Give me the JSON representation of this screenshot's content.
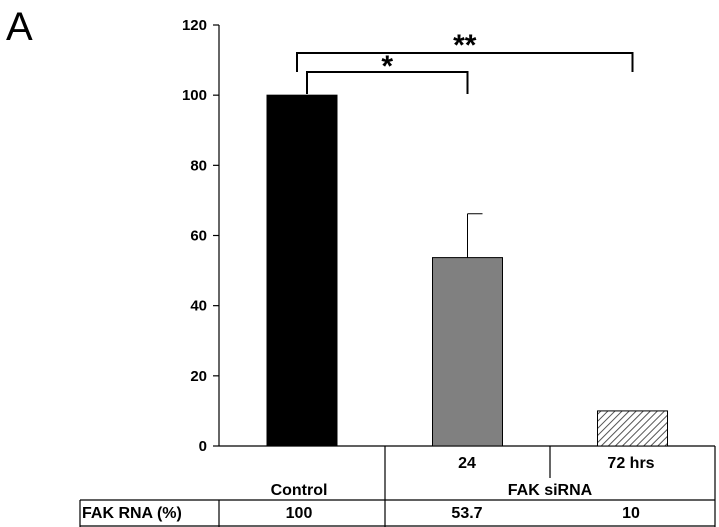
{
  "panel_label": "A",
  "chart_data": {
    "type": "bar",
    "categories": [
      "Control",
      "24",
      "72 hrs"
    ],
    "values": [
      100,
      53.7,
      10
    ],
    "errors": [
      0,
      12.5,
      0
    ],
    "bar_fill": [
      "#000000",
      "#808080",
      "hatched"
    ],
    "ylim": [
      0,
      120
    ],
    "yticks": [
      0,
      20,
      40,
      60,
      80,
      100,
      120
    ],
    "group_label": "FAK siRNA",
    "significance": [
      {
        "from": 0,
        "to": 1,
        "label": "*"
      },
      {
        "from": 0,
        "to": 2,
        "label": "**"
      }
    ],
    "table": {
      "row_label": "FAK RNA (%)",
      "values": [
        "100",
        "53.7",
        "10"
      ]
    },
    "title": "",
    "xlabel": "",
    "ylabel": "",
    "grid": false
  }
}
